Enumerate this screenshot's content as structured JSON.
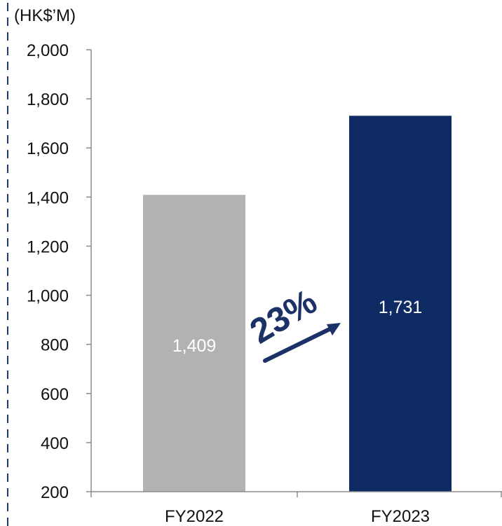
{
  "chart_data": {
    "type": "bar",
    "categories": [
      "FY2022",
      "FY2023"
    ],
    "values": [
      1409,
      1731
    ],
    "data_labels": [
      "1,409",
      "1,731"
    ],
    "unit_label": "(HK$’M)",
    "ylim": [
      200,
      2000
    ],
    "yticks": [
      200,
      400,
      600,
      800,
      1000,
      1200,
      1400,
      1600,
      1800,
      2000
    ],
    "ytick_labels": [
      "200",
      "400",
      "600",
      "800",
      "1,000",
      "1,200",
      "1,400",
      "1,600",
      "1,800",
      "2,000"
    ],
    "bar_colors": [
      "#b2b2b2",
      "#0e2b63"
    ],
    "grid": false,
    "legend": "none"
  },
  "annotation": {
    "growth_label": "23%",
    "color": "#1c3166"
  },
  "frame": {
    "dashed_border_color": "#1f3a6d"
  }
}
